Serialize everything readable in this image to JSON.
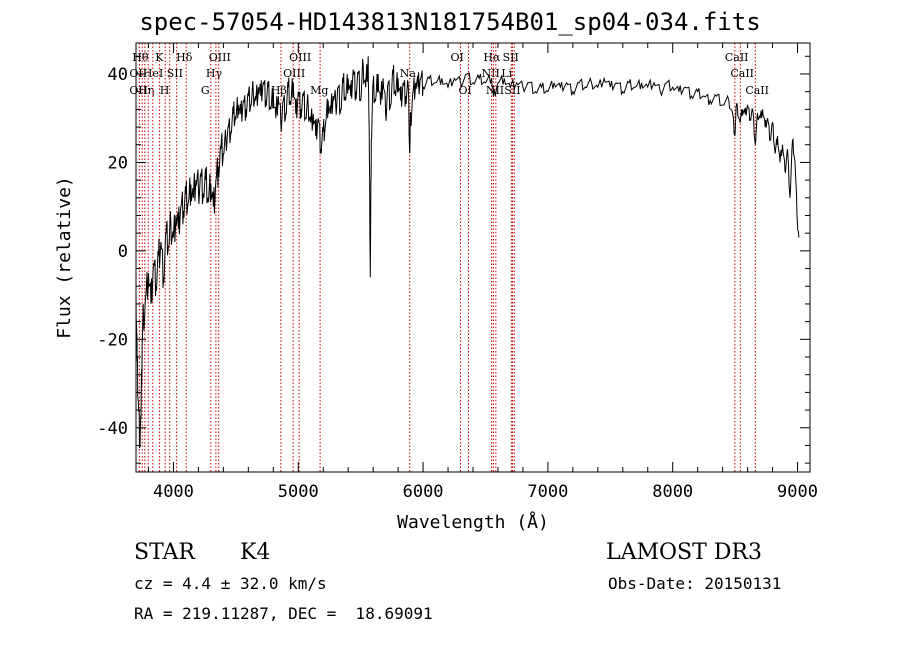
{
  "chart_data": {
    "type": "line",
    "title": "spec-57054-HD143813N181754B01_sp04-034.fits",
    "xlabel": "Wavelength (Å)",
    "ylabel": "Flux (relative)",
    "xlim": [
      3700,
      9100
    ],
    "ylim": [
      -50,
      47
    ],
    "xticks": [
      4000,
      5000,
      6000,
      7000,
      8000,
      9000
    ],
    "yticks": [
      -40,
      -20,
      0,
      20,
      40
    ],
    "grid": false,
    "series": [
      {
        "values_note": "",
        "points": [
          [
            3700,
            -10
          ],
          [
            3710,
            -25
          ],
          [
            3720,
            -35
          ],
          [
            3730,
            -42
          ],
          [
            3740,
            -38
          ],
          [
            3750,
            -20
          ],
          [
            3760,
            -15
          ],
          [
            3780,
            -10
          ],
          [
            3800,
            -5
          ],
          [
            3820,
            -12
          ],
          [
            3840,
            -3
          ],
          [
            3860,
            -8
          ],
          [
            3880,
            -1
          ],
          [
            3900,
            2
          ],
          [
            3920,
            -6
          ],
          [
            3940,
            4
          ],
          [
            3960,
            1
          ],
          [
            3980,
            6
          ],
          [
            4000,
            3
          ],
          [
            4020,
            8
          ],
          [
            4040,
            5
          ],
          [
            4060,
            10
          ],
          [
            4080,
            9
          ],
          [
            4100,
            13
          ],
          [
            4120,
            11
          ],
          [
            4140,
            15
          ],
          [
            4160,
            12
          ],
          [
            4180,
            16
          ],
          [
            4200,
            14
          ],
          [
            4220,
            17
          ],
          [
            4240,
            13
          ],
          [
            4260,
            16
          ],
          [
            4280,
            11
          ],
          [
            4300,
            15
          ],
          [
            4320,
            10
          ],
          [
            4340,
            16
          ],
          [
            4360,
            19
          ],
          [
            4380,
            23
          ],
          [
            4400,
            22
          ],
          [
            4420,
            25
          ],
          [
            4440,
            28
          ],
          [
            4460,
            27
          ],
          [
            4480,
            31
          ],
          [
            4500,
            30
          ],
          [
            4520,
            33
          ],
          [
            4540,
            31
          ],
          [
            4560,
            34
          ],
          [
            4580,
            32
          ],
          [
            4600,
            35
          ],
          [
            4620,
            33
          ],
          [
            4640,
            36
          ],
          [
            4660,
            34
          ],
          [
            4680,
            37
          ],
          [
            4700,
            35
          ],
          [
            4720,
            38
          ],
          [
            4740,
            34
          ],
          [
            4760,
            37
          ],
          [
            4780,
            32
          ],
          [
            4800,
            36
          ],
          [
            4820,
            30
          ],
          [
            4840,
            35
          ],
          [
            4860,
            29
          ],
          [
            4880,
            34
          ],
          [
            4900,
            31
          ],
          [
            4920,
            37
          ],
          [
            4940,
            33
          ],
          [
            4960,
            38
          ],
          [
            4980,
            31
          ],
          [
            5000,
            36
          ],
          [
            5020,
            32
          ],
          [
            5040,
            35
          ],
          [
            5060,
            30
          ],
          [
            5080,
            33
          ],
          [
            5100,
            29
          ],
          [
            5120,
            31
          ],
          [
            5140,
            26
          ],
          [
            5160,
            30
          ],
          [
            5180,
            23
          ],
          [
            5200,
            27
          ],
          [
            5220,
            29
          ],
          [
            5240,
            34
          ],
          [
            5260,
            31
          ],
          [
            5280,
            35
          ],
          [
            5300,
            33
          ],
          [
            5320,
            37
          ],
          [
            5340,
            32
          ],
          [
            5360,
            38
          ],
          [
            5380,
            34
          ],
          [
            5400,
            39
          ],
          [
            5420,
            35
          ],
          [
            5440,
            41
          ],
          [
            5460,
            36
          ],
          [
            5480,
            40
          ],
          [
            5500,
            34
          ],
          [
            5520,
            42
          ],
          [
            5540,
            37
          ],
          [
            5560,
            44
          ],
          [
            5570,
            20
          ],
          [
            5577,
            -6
          ],
          [
            5585,
            25
          ],
          [
            5600,
            38
          ],
          [
            5620,
            34
          ],
          [
            5640,
            40
          ],
          [
            5660,
            33
          ],
          [
            5680,
            39
          ],
          [
            5700,
            31
          ],
          [
            5720,
            38
          ],
          [
            5740,
            33
          ],
          [
            5760,
            40
          ],
          [
            5780,
            35
          ],
          [
            5800,
            39
          ],
          [
            5820,
            34
          ],
          [
            5840,
            38
          ],
          [
            5860,
            35
          ],
          [
            5880,
            38
          ],
          [
            5893,
            22
          ],
          [
            5900,
            30
          ],
          [
            5920,
            36
          ],
          [
            5940,
            38
          ],
          [
            5960,
            37
          ],
          [
            5980,
            39
          ],
          [
            6000,
            37
          ],
          [
            6050,
            39
          ],
          [
            6100,
            38
          ],
          [
            6150,
            39
          ],
          [
            6200,
            37
          ],
          [
            6250,
            39
          ],
          [
            6300,
            38
          ],
          [
            6350,
            40
          ],
          [
            6400,
            38
          ],
          [
            6450,
            39
          ],
          [
            6500,
            38
          ],
          [
            6550,
            39
          ],
          [
            6563,
            35
          ],
          [
            6600,
            38
          ],
          [
            6650,
            39
          ],
          [
            6700,
            37
          ],
          [
            6750,
            38
          ],
          [
            6800,
            37
          ],
          [
            6850,
            38
          ],
          [
            6900,
            36
          ],
          [
            6950,
            37
          ],
          [
            7000,
            36
          ],
          [
            7050,
            38
          ],
          [
            7100,
            37
          ],
          [
            7150,
            38
          ],
          [
            7200,
            36
          ],
          [
            7250,
            38
          ],
          [
            7300,
            37
          ],
          [
            7350,
            38
          ],
          [
            7400,
            37
          ],
          [
            7450,
            39
          ],
          [
            7500,
            37
          ],
          [
            7550,
            38
          ],
          [
            7600,
            36
          ],
          [
            7650,
            38
          ],
          [
            7700,
            37
          ],
          [
            7750,
            38
          ],
          [
            7800,
            37
          ],
          [
            7850,
            38
          ],
          [
            7900,
            36
          ],
          [
            7950,
            38
          ],
          [
            8000,
            37
          ],
          [
            8050,
            36
          ],
          [
            8100,
            37
          ],
          [
            8150,
            35
          ],
          [
            8200,
            36
          ],
          [
            8250,
            35
          ],
          [
            8300,
            34
          ],
          [
            8350,
            35
          ],
          [
            8400,
            33
          ],
          [
            8450,
            34
          ],
          [
            8480,
            31
          ],
          [
            8498,
            26
          ],
          [
            8510,
            33
          ],
          [
            8540,
            29
          ],
          [
            8560,
            32
          ],
          [
            8580,
            31
          ],
          [
            8600,
            33
          ],
          [
            8620,
            30
          ],
          [
            8640,
            32
          ],
          [
            8662,
            24
          ],
          [
            8680,
            31
          ],
          [
            8700,
            30
          ],
          [
            8720,
            32
          ],
          [
            8740,
            28
          ],
          [
            8760,
            30
          ],
          [
            8780,
            25
          ],
          [
            8800,
            29
          ],
          [
            8820,
            22
          ],
          [
            8840,
            26
          ],
          [
            8860,
            20
          ],
          [
            8880,
            24
          ],
          [
            8900,
            18
          ],
          [
            8920,
            23
          ],
          [
            8940,
            12
          ],
          [
            8960,
            25
          ],
          [
            8980,
            20
          ],
          [
            9000,
            6
          ],
          [
            9010,
            3
          ]
        ]
      }
    ],
    "line_markers": [
      {
        "wl": 3727,
        "labels": [
          "OII",
          "OII"
        ],
        "row": [
          1,
          2
        ]
      },
      {
        "wl": 3750,
        "labels": [
          "Hθ"
        ],
        "row": [
          0
        ]
      },
      {
        "wl": 3771,
        "labels": [],
        "row": []
      },
      {
        "wl": 3798,
        "labels": [
          "Hη"
        ],
        "row": [
          2
        ]
      },
      {
        "wl": 3835,
        "labels": [
          "HeI"
        ],
        "row": [
          1
        ]
      },
      {
        "wl": 3889,
        "labels": [],
        "row": []
      },
      {
        "wl": 3934,
        "labels": [
          "K"
        ],
        "row": [
          0
        ]
      },
      {
        "wl": 3970,
        "labels": [
          "H"
        ],
        "row": [
          2
        ]
      },
      {
        "wl": 4026,
        "labels": [
          "SII"
        ],
        "row": [
          1
        ]
      },
      {
        "wl": 4102,
        "labels": [
          "Hδ"
        ],
        "row": [
          0
        ]
      },
      {
        "wl": 4300,
        "labels": [
          "G"
        ],
        "row": [
          2
        ]
      },
      {
        "wl": 4340,
        "labels": [
          "Hγ"
        ],
        "row": [
          1
        ]
      },
      {
        "wl": 4363,
        "labels": [
          "OIII"
        ],
        "row": [
          0
        ]
      },
      {
        "wl": 4861,
        "labels": [
          "Hβ"
        ],
        "row": [
          2
        ]
      },
      {
        "wl": 4959,
        "labels": [
          "OIII"
        ],
        "row": [
          1
        ]
      },
      {
        "wl": 5007,
        "labels": [
          "OIII"
        ],
        "row": [
          0
        ]
      },
      {
        "wl": 5175,
        "labels": [
          "Mg"
        ],
        "row": [
          2
        ]
      },
      {
        "wl": 5893,
        "labels": [
          "Na"
        ],
        "row": [
          1
        ]
      },
      {
        "wl": 6300,
        "labels": [
          "OI"
        ],
        "row": [
          0
        ]
      },
      {
        "wl": 6364,
        "labels": [
          "OI"
        ],
        "row": [
          2
        ]
      },
      {
        "wl": 6548,
        "labels": [
          "NII"
        ],
        "row": [
          1
        ]
      },
      {
        "wl": 6563,
        "labels": [
          "Hα"
        ],
        "row": [
          0
        ]
      },
      {
        "wl": 6583,
        "labels": [
          "NII"
        ],
        "row": [
          2
        ]
      },
      {
        "wl": 6707,
        "labels": [
          "Li"
        ],
        "row": [
          1
        ]
      },
      {
        "wl": 6717,
        "labels": [
          "SII"
        ],
        "row": [
          0
        ]
      },
      {
        "wl": 6731,
        "labels": [
          "SII"
        ],
        "row": [
          2
        ]
      },
      {
        "wl": 8498,
        "labels": [
          "CaII"
        ],
        "row": [
          0
        ]
      },
      {
        "wl": 8542,
        "labels": [
          "CaII"
        ],
        "row": [
          1
        ]
      },
      {
        "wl": 8662,
        "labels": [
          "CaII"
        ],
        "row": [
          2
        ]
      }
    ],
    "marker_color": "#cc0000"
  },
  "info": {
    "object_class": "STAR",
    "subclass": "K4",
    "survey": "LAMOST DR3",
    "redshift_line": "cz = 4.4 ± 32.0 km/s",
    "obs_date_line": "Obs-Date: 20150131",
    "coords_line": "RA = 219.11287, DEC =  18.69091"
  }
}
